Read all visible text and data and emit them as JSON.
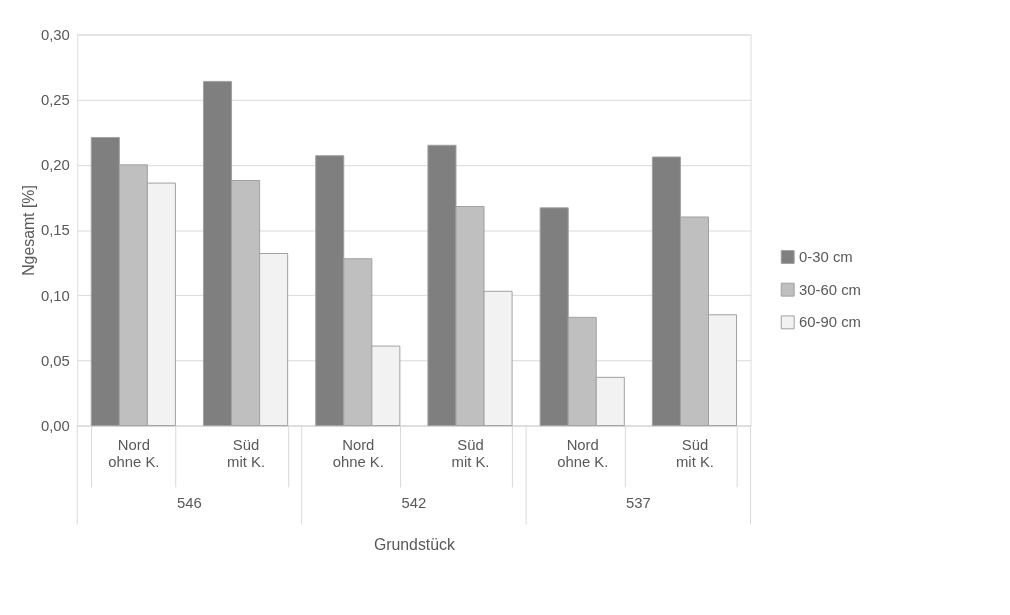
{
  "chart_data": {
    "type": "bar",
    "xlabel": "Grundstück",
    "ylabel": "Ngesamt [%]",
    "categories": [
      "Nord ohne K.",
      "Süd mit K.",
      "Nord ohne K.",
      "Süd mit K.",
      "Nord ohne K.",
      "Süd mit K."
    ],
    "annotations": [
      "546",
      "542",
      "537"
    ],
    "series": [
      {
        "name": "0-30 cm",
        "color": "#7f7f7f",
        "values": [
          0.221,
          0.264,
          0.207,
          0.215,
          0.167,
          0.206
        ]
      },
      {
        "name": "30-60 cm",
        "color": "#bfbfbf",
        "values": [
          0.2,
          0.188,
          0.128,
          0.168,
          0.083,
          0.16
        ]
      },
      {
        "name": "60-90 cm",
        "color": "#f2f2f2",
        "values": [
          0.186,
          0.132,
          0.061,
          0.103,
          0.037,
          0.085
        ]
      }
    ],
    "ylim": [
      0,
      0.3
    ],
    "yticks": [
      {
        "value": 0,
        "label": "0,00"
      },
      {
        "value": 0.05,
        "label": "0,05"
      },
      {
        "value": 0.1,
        "label": "0,10"
      },
      {
        "value": 0.15,
        "label": "0,15"
      },
      {
        "value": 0.2,
        "label": "0,20"
      },
      {
        "value": 0.25,
        "label": "0,25"
      },
      {
        "value": 0.3,
        "label": "0,30"
      }
    ],
    "grid": "y",
    "legend": "right"
  }
}
